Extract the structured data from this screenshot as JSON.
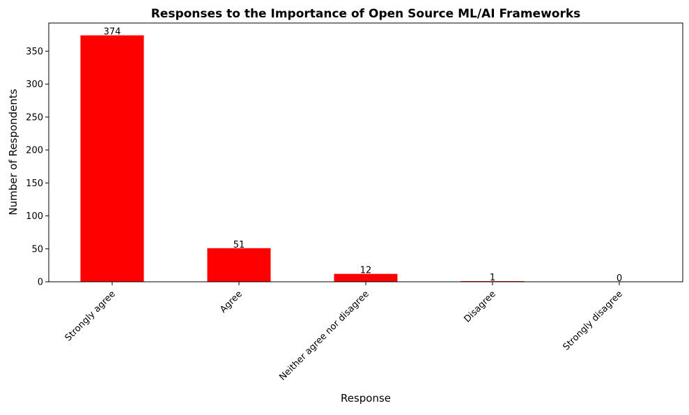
{
  "chart_data": {
    "type": "bar",
    "title": "Responses to the Importance of Open Source ML/AI Frameworks",
    "xlabel": "Response",
    "ylabel": "Number of Respondents",
    "categories": [
      "Strongly agree",
      "Agree",
      "Neither agree nor disagree",
      "Disagree",
      "Strongly disagree"
    ],
    "values": [
      374,
      51,
      12,
      1,
      0
    ],
    "data_labels": [
      "374",
      "51",
      "12",
      "1",
      "0"
    ],
    "yticks": [
      0,
      50,
      100,
      150,
      200,
      250,
      300,
      350
    ],
    "ytick_labels": [
      "0",
      "50",
      "100",
      "150",
      "200",
      "250",
      "300",
      "350"
    ],
    "ylim": [
      0,
      392.7
    ],
    "bar_color": "#ff0000",
    "grid": false,
    "legend": "none"
  }
}
